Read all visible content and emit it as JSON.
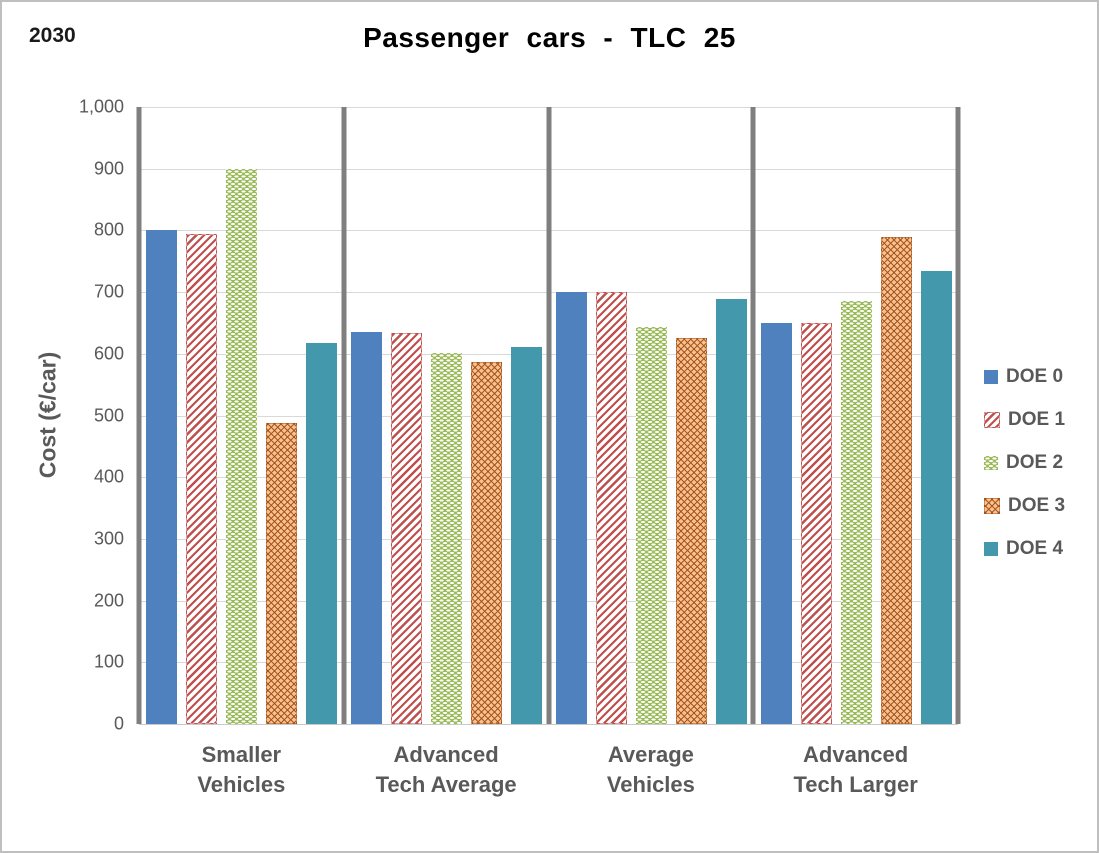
{
  "header": {
    "year": "2030"
  },
  "chart_data": {
    "type": "bar",
    "title": "Passenger cars - TLC 25",
    "xlabel": "",
    "ylabel": "Cost (€/car)",
    "ylim": [
      0,
      1000
    ],
    "ytick_step": 100,
    "ytick_labels_top_to_bottom": [
      "1,000",
      "900",
      "800",
      "700",
      "600",
      "500",
      "400",
      "300",
      "200",
      "100",
      "0"
    ],
    "grid": true,
    "panel_dividers": true,
    "legend_position": "right",
    "categories": [
      "Smaller\nVehicles",
      "Advanced\nTech Average",
      "Average\nVehicles",
      "Advanced\nTech Larger"
    ],
    "series": [
      {
        "name": "DOE 0",
        "style": "solid-blue",
        "color": "#4e81bd",
        "values": [
          800,
          635,
          700,
          650
        ]
      },
      {
        "name": "DOE 1",
        "style": "red-diagonal-hatch",
        "color": "#c0504d",
        "values": [
          795,
          633,
          700,
          650
        ]
      },
      {
        "name": "DOE 2",
        "style": "green-white-dots",
        "color": "#9bbb59",
        "values": [
          900,
          602,
          643,
          685
        ]
      },
      {
        "name": "DOE 3",
        "style": "orange-wave-hatch",
        "color": "#fac090",
        "values": [
          488,
          587,
          626,
          789
        ]
      },
      {
        "name": "DOE 4",
        "style": "solid-teal",
        "color": "#4398ac",
        "values": [
          617,
          611,
          689,
          735
        ]
      }
    ],
    "colors": {
      "gridline": "#d9d9d9",
      "divider": "#7f7f7f",
      "axis_text": "#595959",
      "title_text": "#000000",
      "doe3_stroke": "#a0521a",
      "frame_border": "#bfbfbf"
    }
  }
}
